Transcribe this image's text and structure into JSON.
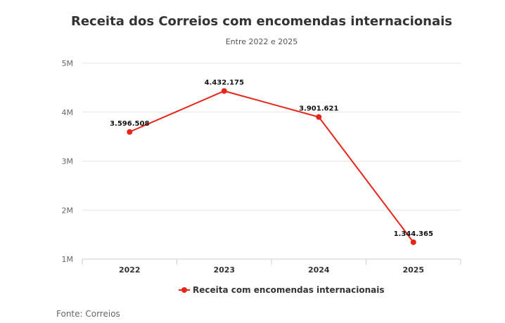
{
  "chart_data": {
    "type": "line",
    "title": "Receita dos Correios com encomendas internacionais",
    "subtitle": "Entre 2022 e 2025",
    "x": [
      "2022",
      "2023",
      "2024",
      "2025"
    ],
    "series": [
      {
        "name": "Receita com encomendas internacionais",
        "values": [
          3596508,
          4432175,
          3901621,
          1344365
        ],
        "labels": [
          "3.596.508",
          "4.432.175",
          "3.901.621",
          "1.344.365"
        ],
        "color": "#e8251a"
      }
    ],
    "ylim": [
      1000000,
      5000000
    ],
    "yticks": [
      1000000,
      2000000,
      3000000,
      4000000,
      5000000
    ],
    "ytick_labels": [
      "1M",
      "2M",
      "3M",
      "4M",
      "5M"
    ],
    "grid": true,
    "legend": "bottom-center",
    "source": "Fonte: Correios"
  }
}
